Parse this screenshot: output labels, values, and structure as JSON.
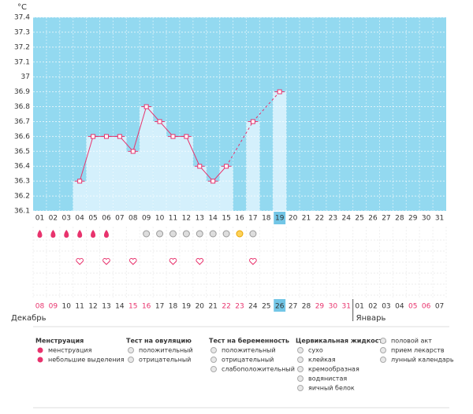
{
  "chart_data": {
    "type": "line",
    "y_label": "°C",
    "categories": [
      "01",
      "02",
      "03",
      "04",
      "05",
      "06",
      "07",
      "08",
      "09",
      "10",
      "11",
      "12",
      "13",
      "14",
      "15",
      "16",
      "17",
      "18",
      "19",
      "20",
      "21",
      "22",
      "23",
      "24",
      "25",
      "26",
      "27",
      "28",
      "29",
      "30",
      "31"
    ],
    "values": [
      null,
      null,
      null,
      36.3,
      36.6,
      36.6,
      36.6,
      36.5,
      36.8,
      36.7,
      36.6,
      36.6,
      36.4,
      36.3,
      36.4,
      null,
      36.7,
      null,
      36.9,
      null,
      null,
      null,
      null,
      null,
      null,
      null,
      null,
      null,
      null,
      null,
      null
    ],
    "ylim": [
      36.1,
      37.4
    ],
    "yticks": [
      36.1,
      36.2,
      36.3,
      36.4,
      36.5,
      36.6,
      36.7,
      36.8,
      36.9,
      37,
      37.1,
      37.2,
      37.3,
      37.4
    ],
    "color": "#e8336d",
    "bar_color": "#d4f0fc",
    "background": "#93d9f0",
    "highlight_category": "19",
    "menstruation_days": [
      1,
      2,
      3,
      4,
      5,
      6
    ],
    "ovulation_negative_days": [
      9,
      10,
      11,
      12,
      13,
      14,
      15,
      17
    ],
    "ovulation_positive_days": [
      16
    ],
    "intercourse_days": [
      4,
      6,
      8,
      11,
      13,
      17
    ]
  },
  "dates": [
    {
      "label": "08",
      "holiday": true
    },
    {
      "label": "09",
      "holiday": true
    },
    {
      "label": "10",
      "holiday": false
    },
    {
      "label": "11",
      "holiday": false
    },
    {
      "label": "12",
      "holiday": false
    },
    {
      "label": "13",
      "holiday": false
    },
    {
      "label": "14",
      "holiday": false
    },
    {
      "label": "15",
      "holiday": true
    },
    {
      "label": "16",
      "holiday": true
    },
    {
      "label": "17",
      "holiday": false
    },
    {
      "label": "18",
      "holiday": false
    },
    {
      "label": "19",
      "holiday": false
    },
    {
      "label": "20",
      "holiday": false
    },
    {
      "label": "21",
      "holiday": false
    },
    {
      "label": "22",
      "holiday": true
    },
    {
      "label": "23",
      "holiday": true
    },
    {
      "label": "24",
      "holiday": false
    },
    {
      "label": "25",
      "holiday": false
    },
    {
      "label": "26",
      "holiday": false
    },
    {
      "label": "27",
      "holiday": false
    },
    {
      "label": "28",
      "holiday": false
    },
    {
      "label": "29",
      "holiday": true
    },
    {
      "label": "30",
      "holiday": true
    },
    {
      "label": "31",
      "holiday": true
    },
    {
      "label": "01",
      "holiday": false
    },
    {
      "label": "02",
      "holiday": false
    },
    {
      "label": "03",
      "holiday": false
    },
    {
      "label": "04",
      "holiday": false
    },
    {
      "label": "05",
      "holiday": true
    },
    {
      "label": "06",
      "holiday": true
    },
    {
      "label": "07",
      "holiday": false
    }
  ],
  "highlight_date": "26",
  "months": [
    "Декабрь",
    "Январь"
  ],
  "legend": [
    {
      "title": "Менструация",
      "items": [
        "менструация",
        "небольшие выделения"
      ]
    },
    {
      "title": "Тест на овуляцию",
      "items": [
        "положительный",
        "отрицательный"
      ]
    },
    {
      "title": "Тест на беременность",
      "items": [
        "положительный",
        "отрицательный",
        "слабоположительный"
      ]
    },
    {
      "title": "Цервикальная жидкость",
      "items": [
        "сухо",
        "клейкая",
        "кремообразная",
        "водянистая",
        "яичный белок"
      ]
    },
    {
      "title": "",
      "items": [
        "половой акт",
        "прием лекарств",
        "лунный календарь"
      ]
    }
  ]
}
